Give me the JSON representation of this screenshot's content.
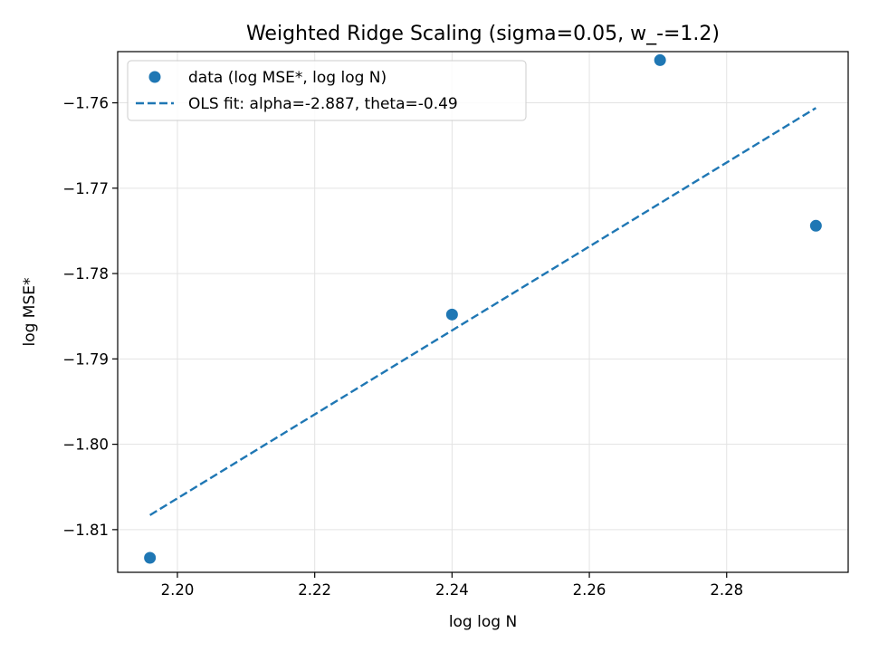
{
  "chart_data": {
    "type": "scatter",
    "title": "Weighted Ridge Scaling (sigma=0.05, w_-=1.2)",
    "xlabel": "log log N",
    "ylabel": "log MSE*",
    "xlim": [
      2.1913,
      2.2977
    ],
    "ylim": [
      -1.815,
      -1.754
    ],
    "xticks": [
      2.2,
      2.22,
      2.24,
      2.26,
      2.28
    ],
    "xtick_labels": [
      "2.20",
      "2.22",
      "2.24",
      "2.26",
      "2.28"
    ],
    "yticks": [
      -1.81,
      -1.8,
      -1.79,
      -1.78,
      -1.77,
      -1.76
    ],
    "ytick_labels": [
      "−1.81",
      "−1.80",
      "−1.79",
      "−1.78",
      "−1.77",
      "−1.76"
    ],
    "grid": true,
    "legend_position": "upper-left",
    "series": [
      {
        "name": "data (log MSE*, log log N)",
        "kind": "scatter",
        "color": "#1f77b4",
        "points": [
          {
            "x": 2.196,
            "y": -1.8133
          },
          {
            "x": 2.24,
            "y": -1.7848
          },
          {
            "x": 2.2703,
            "y": -1.755
          },
          {
            "x": 2.293,
            "y": -1.7744
          }
        ]
      },
      {
        "name": "OLS fit: alpha=-2.887, theta=-0.49",
        "kind": "line",
        "style": "dashed",
        "color": "#1f77b4",
        "points": [
          {
            "x": 2.196,
            "y": -1.8083
          },
          {
            "x": 2.293,
            "y": -1.7606
          }
        ]
      }
    ]
  }
}
